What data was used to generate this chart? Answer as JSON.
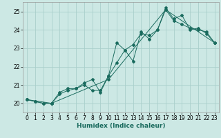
{
  "xlabel": "Humidex (Indice chaleur)",
  "ylabel": "",
  "bg_color": "#cce8e4",
  "grid_color": "#aacfcb",
  "line_color": "#1a6b5e",
  "xlim": [
    -0.5,
    23.5
  ],
  "ylim": [
    19.5,
    25.5
  ],
  "xticks": [
    0,
    1,
    2,
    3,
    4,
    5,
    6,
    7,
    8,
    9,
    10,
    11,
    12,
    13,
    14,
    15,
    16,
    17,
    18,
    19,
    20,
    21,
    22,
    23
  ],
  "yticks": [
    20,
    21,
    22,
    23,
    24,
    25
  ],
  "line1": [
    20.2,
    20.1,
    20.0,
    20.0,
    20.5,
    20.7,
    20.8,
    21.0,
    20.7,
    20.7,
    21.5,
    23.3,
    22.9,
    23.2,
    23.8,
    23.7,
    24.0,
    25.1,
    24.5,
    24.3,
    24.1,
    24.0,
    23.9,
    23.3
  ],
  "line2": [
    20.2,
    20.1,
    20.0,
    20.0,
    20.6,
    20.8,
    20.8,
    21.1,
    21.3,
    20.6,
    21.5,
    22.2,
    22.9,
    22.3,
    23.9,
    23.5,
    24.0,
    25.2,
    24.6,
    24.8,
    24.0,
    24.1,
    23.8,
    23.3
  ],
  "line3_x": [
    0,
    3,
    10,
    17,
    23
  ],
  "line3_y": [
    20.2,
    20.0,
    21.3,
    25.1,
    23.3
  ],
  "tick_fontsize": 5.5,
  "xlabel_fontsize": 6.5
}
